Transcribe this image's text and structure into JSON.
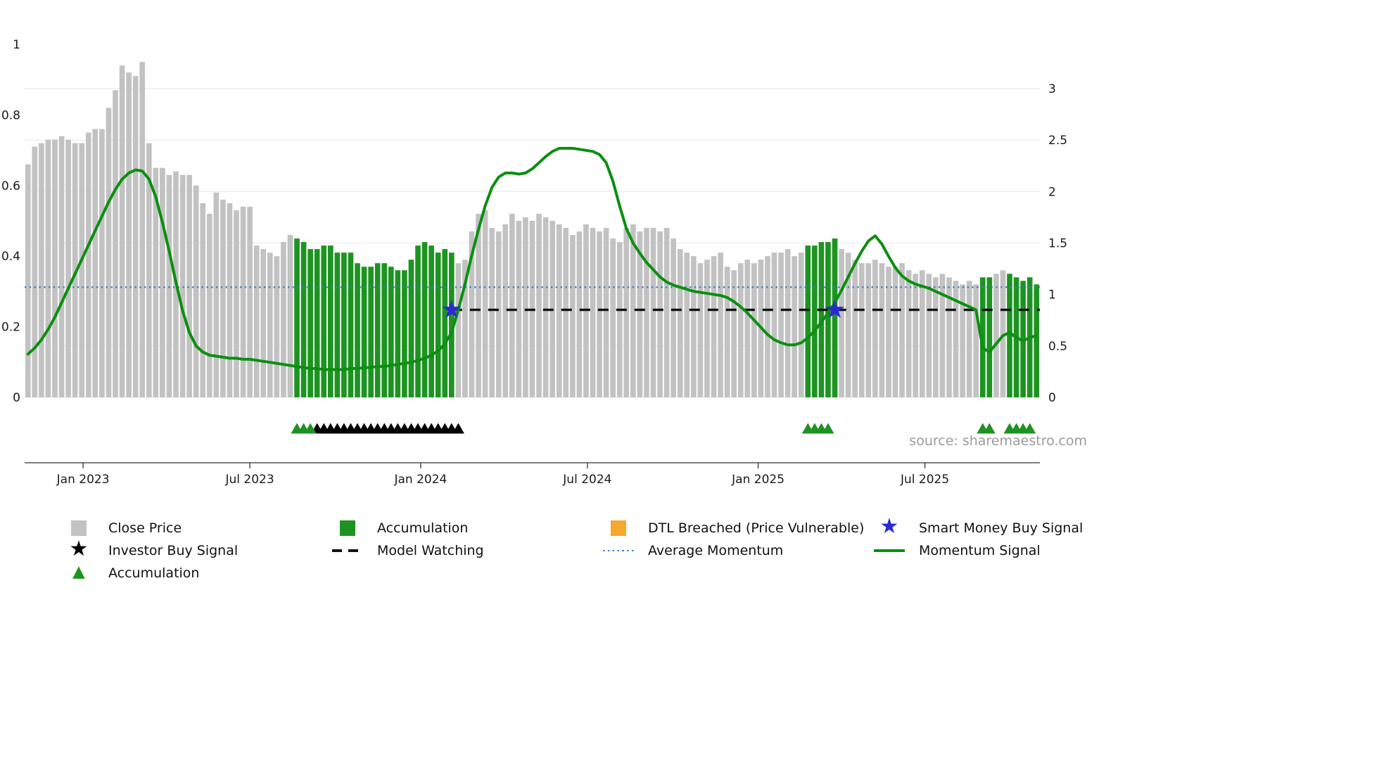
{
  "chart_data": {
    "type": "bar+line",
    "title": "",
    "source_text": "source: sharemaestro.com",
    "left_axis": {
      "label": "",
      "ticks": [
        0,
        0.2,
        0.4,
        0.6,
        0.8,
        1
      ],
      "range": [
        0,
        1.125
      ]
    },
    "right_axis": {
      "label": "",
      "ticks": [
        0,
        0.5,
        1,
        1.5,
        2,
        2.5,
        3
      ],
      "range": [
        0,
        3.1
      ]
    },
    "x_ticks": [
      {
        "label": "Jan 2023",
        "index": 8.2
      },
      {
        "label": "Jul 2023",
        "index": 33.0
      },
      {
        "label": "Jan 2024",
        "index": 58.4
      },
      {
        "label": "Jul 2024",
        "index": 83.2
      },
      {
        "label": "Jan 2025",
        "index": 108.6
      },
      {
        "label": "Jul 2025",
        "index": 133.4
      }
    ],
    "close": {
      "name": "Close Price",
      "values": [
        0.66,
        0.71,
        0.72,
        0.73,
        0.73,
        0.74,
        0.73,
        0.72,
        0.72,
        0.75,
        0.76,
        0.76,
        0.82,
        0.87,
        0.94,
        0.92,
        0.91,
        0.95,
        0.72,
        0.65,
        0.65,
        0.63,
        0.64,
        0.63,
        0.63,
        0.6,
        0.55,
        0.52,
        0.58,
        0.56,
        0.55,
        0.53,
        0.54,
        0.54,
        0.43,
        0.42,
        0.41,
        0.4,
        0.44,
        0.46,
        0.45,
        0.44,
        0.42,
        0.42,
        0.43,
        0.43,
        0.41,
        0.41,
        0.41,
        0.38,
        0.37,
        0.37,
        0.38,
        0.38,
        0.37,
        0.36,
        0.36,
        0.39,
        0.43,
        0.44,
        0.43,
        0.41,
        0.42,
        0.41,
        0.38,
        0.39,
        0.47,
        0.52,
        0.53,
        0.48,
        0.47,
        0.49,
        0.52,
        0.5,
        0.51,
        0.5,
        0.52,
        0.51,
        0.5,
        0.49,
        0.48,
        0.46,
        0.47,
        0.49,
        0.48,
        0.47,
        0.48,
        0.45,
        0.44,
        0.48,
        0.49,
        0.47,
        0.48,
        0.48,
        0.47,
        0.48,
        0.45,
        0.42,
        0.41,
        0.4,
        0.38,
        0.39,
        0.4,
        0.41,
        0.37,
        0.36,
        0.38,
        0.39,
        0.38,
        0.39,
        0.4,
        0.41,
        0.41,
        0.42,
        0.4,
        0.41,
        0.43,
        0.43,
        0.44,
        0.44,
        0.45,
        0.42,
        0.41,
        0.39,
        0.38,
        0.38,
        0.39,
        0.38,
        0.37,
        0.37,
        0.38,
        0.36,
        0.35,
        0.36,
        0.35,
        0.34,
        0.35,
        0.34,
        0.33,
        0.32,
        0.33,
        0.32,
        0.34,
        0.34,
        0.35,
        0.36,
        0.35,
        0.34,
        0.33,
        0.34,
        0.32
      ]
    },
    "momentum": {
      "name": "Momentum Signal",
      "values": [
        0.42,
        0.48,
        0.56,
        0.66,
        0.78,
        0.92,
        1.06,
        1.2,
        1.34,
        1.48,
        1.62,
        1.76,
        1.9,
        2.02,
        2.12,
        2.18,
        2.21,
        2.2,
        2.12,
        1.95,
        1.7,
        1.42,
        1.12,
        0.84,
        0.63,
        0.5,
        0.44,
        0.41,
        0.4,
        0.39,
        0.38,
        0.38,
        0.37,
        0.37,
        0.36,
        0.35,
        0.34,
        0.33,
        0.32,
        0.31,
        0.3,
        0.29,
        0.28,
        0.28,
        0.27,
        0.27,
        0.27,
        0.27,
        0.28,
        0.28,
        0.29,
        0.29,
        0.3,
        0.3,
        0.31,
        0.32,
        0.33,
        0.34,
        0.36,
        0.38,
        0.41,
        0.45,
        0.52,
        0.63,
        0.85,
        1.1,
        1.38,
        1.63,
        1.86,
        2.04,
        2.14,
        2.18,
        2.18,
        2.17,
        2.18,
        2.22,
        2.28,
        2.34,
        2.39,
        2.42,
        2.42,
        2.42,
        2.41,
        2.4,
        2.39,
        2.36,
        2.28,
        2.1,
        1.86,
        1.64,
        1.5,
        1.4,
        1.31,
        1.24,
        1.17,
        1.12,
        1.09,
        1.07,
        1.05,
        1.03,
        1.02,
        1.01,
        1.0,
        0.99,
        0.97,
        0.93,
        0.88,
        0.82,
        0.75,
        0.68,
        0.61,
        0.56,
        0.53,
        0.51,
        0.51,
        0.53,
        0.58,
        0.65,
        0.73,
        0.82,
        0.92,
        1.04,
        1.17,
        1.3,
        1.42,
        1.52,
        1.57,
        1.49,
        1.37,
        1.26,
        1.18,
        1.13,
        1.1,
        1.08,
        1.06,
        1.03,
        1.0,
        0.97,
        0.94,
        0.91,
        0.88,
        0.85,
        0.48,
        0.44,
        0.52,
        0.6,
        0.63,
        0.58,
        0.55,
        0.58,
        0.6
      ]
    },
    "accumulation_bar_ranges": [
      [
        40,
        63
      ],
      [
        116,
        120
      ],
      [
        142,
        143
      ],
      [
        146,
        150
      ]
    ],
    "average_momentum": 1.07,
    "model_watching": {
      "value": 0.85,
      "start_index": 63
    },
    "smart_money_signals": [
      {
        "index": 63,
        "value": 0.85
      },
      {
        "index": 120,
        "value": 0.85
      }
    ],
    "investor_buy_markers": [
      43,
      44,
      45,
      46,
      47,
      48,
      49,
      50,
      51,
      52,
      53,
      54,
      55,
      56,
      57,
      58,
      59,
      60,
      61,
      62,
      63,
      64
    ],
    "accumulation_markers": [
      40,
      41,
      42,
      116,
      117,
      118,
      119,
      142,
      143,
      146,
      147,
      148,
      149
    ],
    "grid": true,
    "legend_position": "bottom",
    "colors": {
      "close_bar": "#c2c2c2",
      "accumulation_bar": "#1d9421",
      "momentum": "#0b8f0f",
      "average": "#3b7cc0",
      "model": "#111111",
      "smart_money": "#2a2ad0",
      "investor": "#000000",
      "dtl_breached": "#f5a82d",
      "grid": "#ebebeb",
      "axis": "#333333",
      "tick_label": "#1a1a1a",
      "source": "#9b9b9b"
    }
  },
  "legend": {
    "items": [
      {
        "label": "Close Price",
        "swatch": {
          "kind": "square",
          "color": "close_bar"
        }
      },
      {
        "label": "Accumulation",
        "swatch": {
          "kind": "square",
          "color": "accumulation_bar"
        }
      },
      {
        "label": "DTL Breached (Price Vulnerable)",
        "swatch": {
          "kind": "square",
          "color": "dtl_breached"
        }
      },
      {
        "label": "Smart Money Buy Signal",
        "swatch": {
          "kind": "star",
          "color": "smart_money"
        }
      },
      {
        "label": "Investor Buy Signal",
        "swatch": {
          "kind": "star",
          "color": "investor"
        }
      },
      {
        "label": "Model Watching",
        "swatch": {
          "kind": "dash",
          "color": "model"
        }
      },
      {
        "label": "Average Momentum",
        "swatch": {
          "kind": "dot",
          "color": "average"
        }
      },
      {
        "label": "Momentum Signal",
        "swatch": {
          "kind": "solid",
          "color": "momentum"
        }
      },
      {
        "label": "Accumulation",
        "swatch": {
          "kind": "triangle",
          "color": "accumulation_bar"
        }
      }
    ]
  }
}
